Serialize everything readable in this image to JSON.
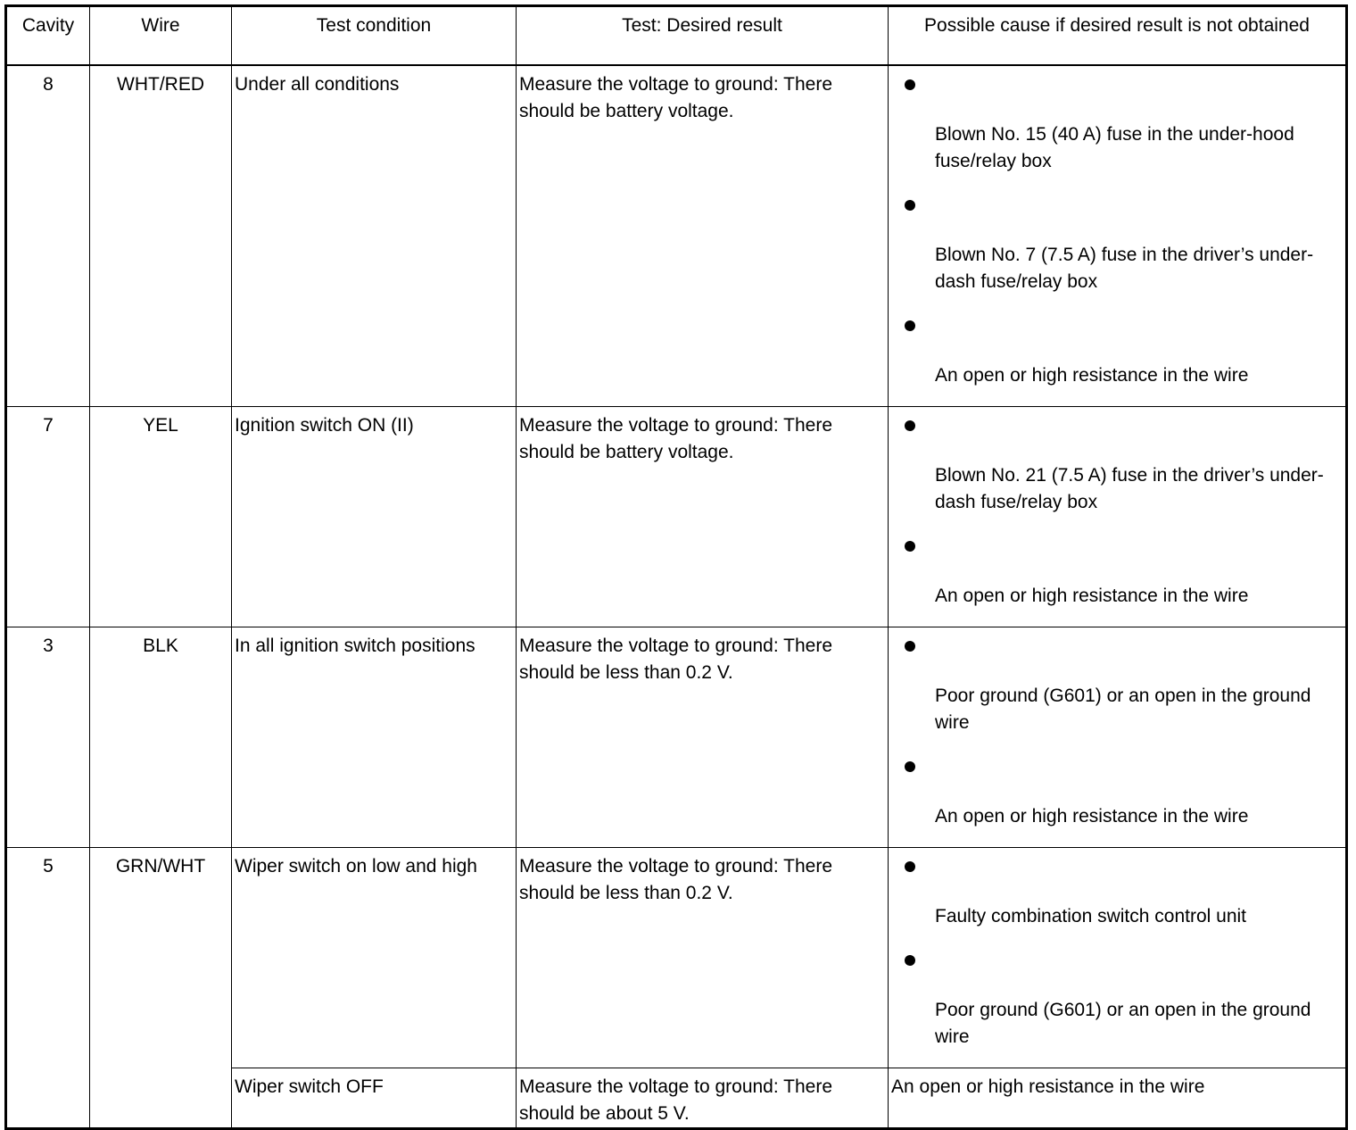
{
  "headers": [
    "Cavity",
    "Wire",
    "Test condition",
    "Test: Desired result",
    "Possible cause if desired result is not obtained"
  ],
  "rows": [
    {
      "cavity": "8",
      "wire": "WHT/RED",
      "condition": "Under all conditions",
      "result": "Measure the voltage to ground: There should be battery voltage.",
      "causes": [
        "Blown No. 15 (40 A) fuse in the under-hood fuse/relay box",
        "Blown No. 7 (7.5 A) fuse in the driver’s under-dash fuse/relay box",
        "An open or high resistance in the wire"
      ]
    },
    {
      "cavity": "7",
      "wire": "YEL",
      "condition": "Ignition switch ON (II)",
      "result": "Measure the voltage to ground: There should be battery voltage.",
      "causes": [
        "Blown No. 21 (7.5 A) fuse in the driver’s under-dash fuse/relay box",
        "An open or high resistance in the wire"
      ]
    },
    {
      "cavity": "3",
      "wire": "BLK",
      "condition": "In all ignition switch positions",
      "result": "Measure the voltage to ground: There should be less than 0.2 V.",
      "causes": [
        "Poor ground (G601) or an open in the ground wire",
        "An open or high resistance in the wire"
      ]
    },
    {
      "cavity": "5",
      "wire": "GRN/WHT",
      "condition": "Wiper switch on low and high",
      "result": "Measure the voltage to ground: There should be less than 0.2 V.",
      "causes": [
        "Faulty combination switch control unit",
        "Poor ground (G601) or an open in the ground wire"
      ]
    },
    {
      "condition": "Wiper switch OFF",
      "result": "Measure the voltage to ground: There should be about 5 V.",
      "cause": "An open or high resistance in the wire"
    }
  ]
}
